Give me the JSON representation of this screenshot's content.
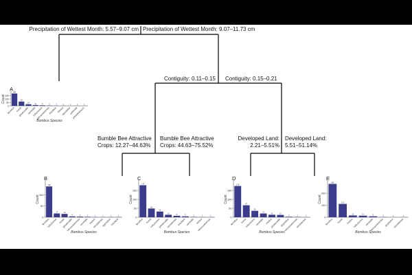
{
  "tree": {
    "splits": [
      {
        "id": "root-left",
        "text": "Precipitation of Wettest Month: 5.57–9.07 cm"
      },
      {
        "id": "root-right",
        "text": "Precipitation of Wettest Month: 9.07–11.73 cm"
      },
      {
        "id": "contig-left",
        "text": "Contiguity: 0.11–0.15"
      },
      {
        "id": "contig-right",
        "text": "Contiguity: 0.15–0.21"
      },
      {
        "id": "crops-left-1",
        "text": "Bumble Bee Attractive"
      },
      {
        "id": "crops-left-2",
        "text": "Crops: 12.27–44.63%"
      },
      {
        "id": "crops-right-1",
        "text": "Bumble Bee Attractive"
      },
      {
        "id": "crops-right-2",
        "text": "Crops: 44.63–75.52%"
      },
      {
        "id": "dev-left-1",
        "text": "Developed Land:"
      },
      {
        "id": "dev-left-2",
        "text": "2.21–5.51%"
      },
      {
        "id": "dev-right-1",
        "text": "Developed Land:"
      },
      {
        "id": "dev-right-2",
        "text": "5.51–51.14%"
      }
    ]
  },
  "chart_data": [
    {
      "type": "bar",
      "panel": "A",
      "ylabel": "Count",
      "xlabel": "Bombus Species",
      "ylim": [
        0,
        200
      ],
      "yticks": [
        0,
        50,
        100,
        150
      ],
      "categories": [
        "fervidus",
        "huntii",
        "griseocollis",
        "centralis",
        "rufocinctus",
        "vancouverensis",
        "insularis",
        "mixtus",
        "appositus",
        "sylvicola",
        "pensylvanicus"
      ],
      "values": [
        180,
        63,
        24,
        12,
        8,
        5,
        3,
        2,
        1,
        1,
        1
      ]
    },
    {
      "type": "bar",
      "panel": "B",
      "ylabel": "Count",
      "xlabel": "Bombus Species",
      "ylim": [
        0,
        160
      ],
      "yticks": [
        0,
        50,
        100
      ],
      "categories": [
        "fervidus",
        "rufocinctus",
        "huntii",
        "griseocollis",
        "vancouverensis",
        "centralis",
        "mixtus",
        "nevadensis",
        "appositus",
        "insularis"
      ],
      "values": [
        138,
        17,
        15,
        4,
        3,
        2,
        1,
        1,
        1,
        1
      ]
    },
    {
      "type": "bar",
      "panel": "C",
      "ylabel": "Count",
      "xlabel": "Bombus Species",
      "ylim": [
        0,
        200
      ],
      "yticks": [
        0,
        50,
        100,
        150
      ],
      "categories": [
        "fervidus",
        "huntii",
        "rufocinctus",
        "griseocollis",
        "nevadensis",
        "insularis",
        "centralis",
        "mixtus",
        "vancouverensis"
      ],
      "values": [
        179,
        49,
        32,
        14,
        8,
        5,
        2,
        1,
        1
      ]
    },
    {
      "type": "bar",
      "panel": "D",
      "ylabel": "Count",
      "xlabel": "Bombus Species",
      "ylim": [
        0,
        200
      ],
      "yticks": [
        0,
        50,
        100,
        150
      ],
      "categories": [
        "fervidus",
        "huntii",
        "rufocinctus",
        "centralis",
        "mixtus",
        "griseocollis",
        "appositus",
        "vancouverensis",
        "nevadensis"
      ],
      "values": [
        175,
        67,
        36,
        21,
        14,
        13,
        3,
        2,
        1
      ]
    },
    {
      "type": "bar",
      "panel": "E",
      "ylabel": "Count",
      "xlabel": "Bombus Species",
      "ylim": [
        0,
        300
      ],
      "yticks": [
        0,
        100,
        200
      ],
      "categories": [
        "fervidus",
        "huntii",
        "mixtus",
        "rufocinctus",
        "centralis",
        "vancouverensis",
        "appositus",
        "nevadensis"
      ],
      "values": [
        280,
        112,
        15,
        13,
        8,
        2,
        1,
        1
      ]
    }
  ]
}
